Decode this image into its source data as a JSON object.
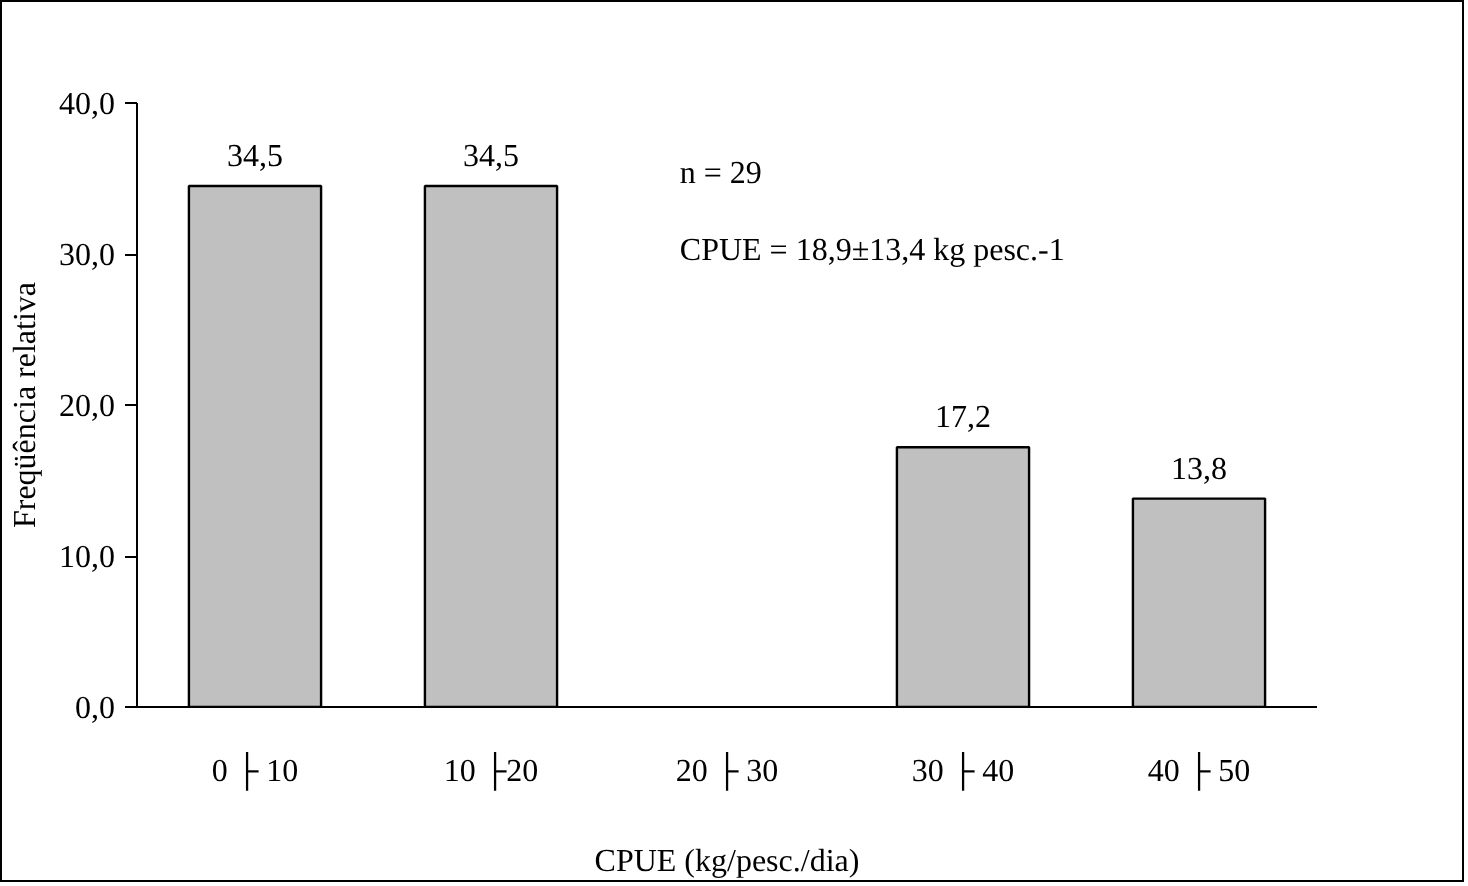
{
  "chart_data": {
    "type": "bar",
    "xlabel": "CPUE (kg/pesc./dia)",
    "ylabel": "Freqüência relativa",
    "categories": [
      "0 ├ 10",
      "10 ├20",
      "20 ├ 30",
      "30 ├ 40",
      "40 ├ 50"
    ],
    "values": [
      34.5,
      34.5,
      0,
      17.2,
      13.8
    ],
    "value_labels": [
      "34,5",
      "34,5",
      null,
      "17,2",
      "13,8"
    ],
    "color": "#c0c0c0",
    "ylim": [
      0,
      40
    ],
    "yticks": [
      {
        "value": 0,
        "label": "0,0"
      },
      {
        "value": 10,
        "label": "10,0"
      },
      {
        "value": 20,
        "label": "20,0"
      },
      {
        "value": 30,
        "label": "30,0"
      },
      {
        "value": 40,
        "label": "40,0"
      }
    ],
    "annotations": [
      "n = 29",
      "CPUE = 18,9±13,4 kg pesc.-1"
    ],
    "grid": false
  }
}
